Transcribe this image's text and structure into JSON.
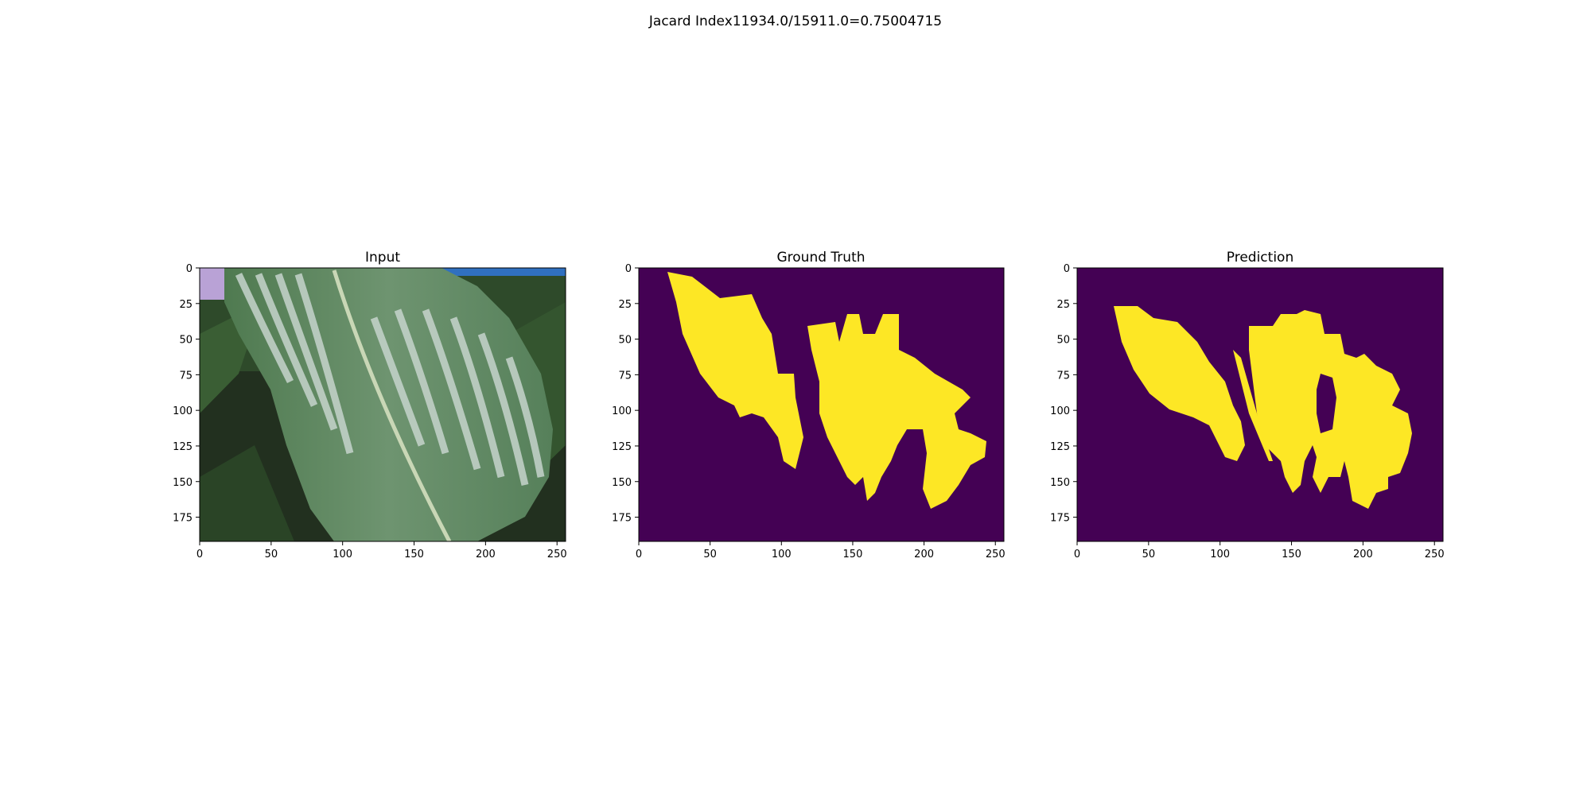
{
  "figure": {
    "suptitle": "Jacard Index11934.0/15911.0=0.75004715"
  },
  "colors": {
    "mask_background": "#440154",
    "mask_foreground": "#fde725",
    "axes_frame": "#000000"
  },
  "chart_data": [
    {
      "type": "image",
      "title": "Input",
      "xlim": [
        0,
        256
      ],
      "ylim": [
        192,
        0
      ],
      "xticks": [
        "0",
        "50",
        "100",
        "150",
        "200",
        "250"
      ],
      "yticks": [
        "0",
        "25",
        "50",
        "75",
        "100",
        "125",
        "150",
        "175"
      ],
      "content": "RGB photo of a maize leaf with pale striped lesions"
    },
    {
      "type": "image",
      "title": "Ground Truth",
      "xlim": [
        0,
        256
      ],
      "ylim": [
        192,
        0
      ],
      "xticks": [
        "0",
        "50",
        "100",
        "150",
        "200",
        "250"
      ],
      "yticks": [
        "0",
        "25",
        "50",
        "75",
        "100",
        "125",
        "150",
        "175"
      ],
      "content": "binary segmentation mask"
    },
    {
      "type": "image",
      "title": "Prediction",
      "xlim": [
        0,
        256
      ],
      "ylim": [
        192,
        0
      ],
      "xticks": [
        "0",
        "50",
        "100",
        "150",
        "200",
        "250"
      ],
      "yticks": [
        "0",
        "25",
        "50",
        "75",
        "100",
        "125",
        "150",
        "175"
      ],
      "content": "binary segmentation mask"
    }
  ]
}
